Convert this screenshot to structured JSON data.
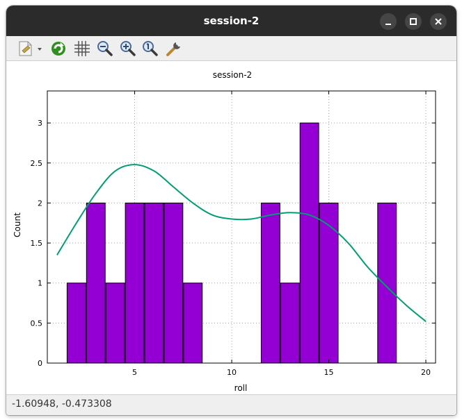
{
  "window": {
    "title": "session-2"
  },
  "toolbar": {
    "icons": [
      "export-icon",
      "replot-icon",
      "grid-icon",
      "zoom-out-icon",
      "zoom-in-icon",
      "zoom-reset-icon",
      "settings-icon"
    ]
  },
  "status": {
    "coords": "-1.60948, -0.473308"
  },
  "colors": {
    "bar": "#9400d3",
    "curve": "#009e73"
  },
  "chart_data": {
    "type": "bar",
    "title": "session-2",
    "xlabel": "roll",
    "ylabel": "Count",
    "xlim": [
      0.5,
      20.5
    ],
    "ylim": [
      0,
      3.4
    ],
    "xticks": [
      5,
      10,
      15,
      20
    ],
    "yticks": [
      0,
      0.5,
      1,
      1.5,
      2,
      2.5,
      3
    ],
    "grid": true,
    "bins": [
      {
        "x": 2,
        "count": 1
      },
      {
        "x": 3,
        "count": 2
      },
      {
        "x": 4,
        "count": 1
      },
      {
        "x": 5,
        "count": 2
      },
      {
        "x": 6,
        "count": 2
      },
      {
        "x": 7,
        "count": 2
      },
      {
        "x": 8,
        "count": 1
      },
      {
        "x": 12,
        "count": 2
      },
      {
        "x": 13,
        "count": 1
      },
      {
        "x": 14,
        "count": 3
      },
      {
        "x": 15,
        "count": 2
      },
      {
        "x": 18,
        "count": 2
      }
    ],
    "bin_width": 1,
    "density_curve": {
      "x": [
        1,
        2,
        3,
        4,
        5,
        6,
        7,
        8,
        9,
        10,
        11,
        12,
        13,
        14,
        15,
        16,
        17,
        18,
        19,
        20
      ],
      "y": [
        1.35,
        1.75,
        2.12,
        2.4,
        2.48,
        2.4,
        2.2,
        2.0,
        1.85,
        1.8,
        1.8,
        1.85,
        1.88,
        1.85,
        1.72,
        1.5,
        1.2,
        0.95,
        0.72,
        0.52
      ]
    }
  }
}
